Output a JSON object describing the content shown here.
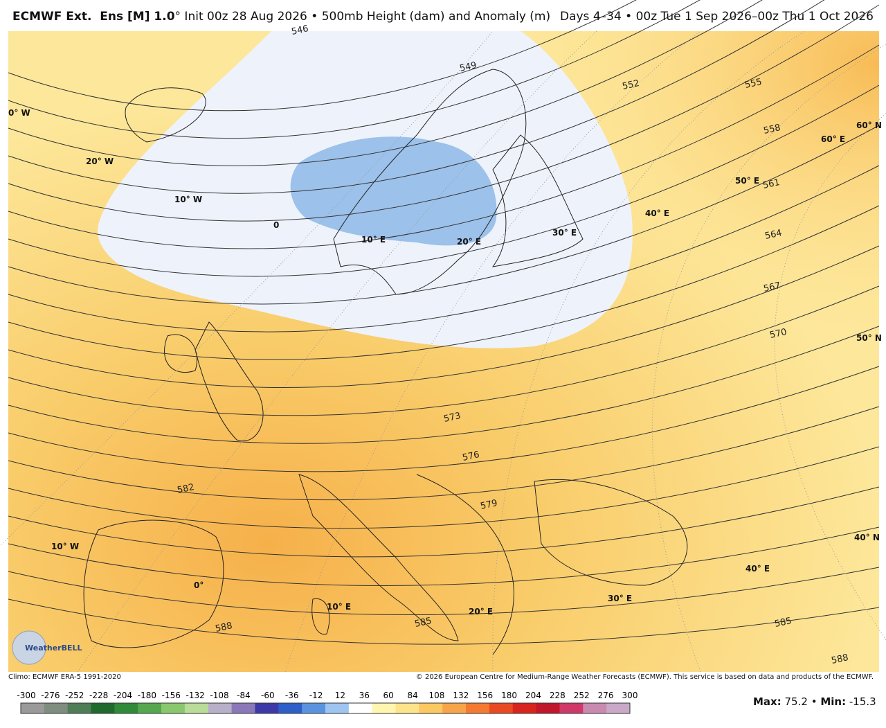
{
  "header": {
    "title_bold": "ECMWF Ext.  Ens [M] 1.0",
    "title_rest": "° Init 00z 28 Aug 2026 • 500mb Height (dam) and Anomaly (m)",
    "valid": "Days 4–34 • 00z Tue 1 Sep 2026–00z Thu 1 Oct 2026"
  },
  "map": {
    "contour_labels": [
      "546",
      "549",
      "552",
      "555",
      "558",
      "561",
      "564",
      "567",
      "570",
      "573",
      "576",
      "579",
      "582",
      "585",
      "585",
      "588",
      "588"
    ],
    "grid_labels": [
      "0° W",
      "20° W",
      "10° W",
      "0",
      "10° E",
      "20° E",
      "30° E",
      "40° E",
      "50° E",
      "60° E",
      "60° N",
      "50° N",
      "40° N",
      "40° E",
      "30° E",
      "20° E",
      "10° E",
      "0°",
      "10° W"
    ],
    "watermark": "WeatherBELL"
  },
  "footer": {
    "climo": "Climo: ECMWF ERA-5 1991-2020",
    "copyright": "© 2026 European Centre for Medium-Range Weather Forecasts (ECMWF). This service is based on data and products of the ECMWF."
  },
  "colorbar": {
    "ticks": [
      -300,
      -276,
      -252,
      -228,
      -204,
      -180,
      -156,
      -132,
      -108,
      -84,
      -60,
      -36,
      -12,
      12,
      36,
      60,
      84,
      108,
      132,
      156,
      180,
      204,
      228,
      252,
      276,
      300
    ],
    "colors": [
      "#9a9a9a",
      "#7f8c80",
      "#4f7d55",
      "#1f6b2d",
      "#2f8a3a",
      "#55a84f",
      "#8ac86e",
      "#b9dc98",
      "#b8b0c8",
      "#8a78b8",
      "#3d3aa8",
      "#2c5fc8",
      "#5a94e0",
      "#9ec4f0",
      "#ffffff",
      "#fff6b0",
      "#fde38a",
      "#fbc862",
      "#f8a448",
      "#f47a30",
      "#ea4a22",
      "#d8241c",
      "#c0182a",
      "#d0386a",
      "#c98ab0",
      "#c9a8c8"
    ]
  },
  "stats": {
    "max_label": "Max:",
    "max": 75.2,
    "separator": "•",
    "min_label": "Min:",
    "min": -15.3
  }
}
